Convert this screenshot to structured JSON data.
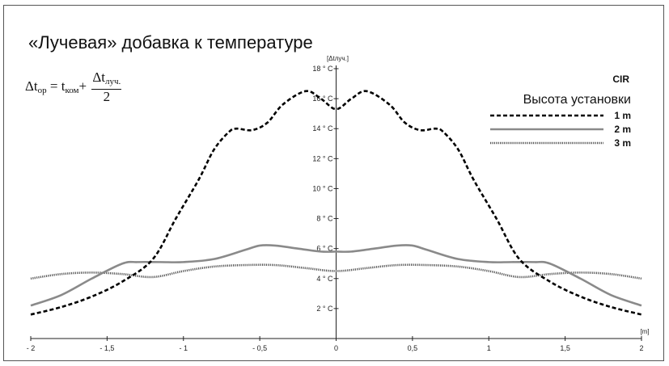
{
  "title": "«Лучевая» добавка к температуре",
  "formula": {
    "lhs": "Δt",
    "lhs_sub": "op",
    "eq": " = t",
    "t_sub": "ком",
    "plus": "+",
    "num": "Δt",
    "num_sub": "луч.",
    "den": "2"
  },
  "code_label": "CIR",
  "legend": {
    "title": "Высота установки",
    "items": [
      {
        "label": "1 m",
        "color": "#000000",
        "style": "dashed"
      },
      {
        "label": "2 m",
        "color": "#8a8a8a",
        "style": "solid"
      },
      {
        "label": "3 m",
        "color": "#555555",
        "style": "dotted"
      }
    ]
  },
  "chart_data": {
    "type": "line",
    "ylabel": "[Δtлуч.]",
    "xunit": "[m]",
    "xlim": [
      -2,
      2
    ],
    "ylim": [
      0,
      18
    ],
    "xticks": [
      {
        "value": -2,
        "label": "- 2"
      },
      {
        "value": -1.5,
        "label": "- 1,5"
      },
      {
        "value": -1,
        "label": "- 1"
      },
      {
        "value": -0.5,
        "label": "- 0,5"
      },
      {
        "value": 0,
        "label": "0"
      },
      {
        "value": 0.5,
        "label": "0,5"
      },
      {
        "value": 1,
        "label": "1"
      },
      {
        "value": 1.5,
        "label": "1,5"
      },
      {
        "value": 2,
        "label": "2"
      }
    ],
    "yticks": [
      {
        "value": 2,
        "label": "2 ° C"
      },
      {
        "value": 4,
        "label": "4 ° C"
      },
      {
        "value": 6,
        "label": "6 ° C"
      },
      {
        "value": 8,
        "label": "8 ° C"
      },
      {
        "value": 10,
        "label": "10 ° C"
      },
      {
        "value": 12,
        "label": "12 ° C"
      },
      {
        "value": 14,
        "label": "14 ° C"
      },
      {
        "value": 16,
        "label": "16 ° C"
      },
      {
        "value": 18,
        "label": "18 ° C"
      }
    ],
    "series": [
      {
        "name": "1 m",
        "x": [
          -2,
          -1.8,
          -1.6,
          -1.4,
          -1.2,
          -1.05,
          -0.9,
          -0.8,
          -0.7,
          -0.65,
          -0.55,
          -0.45,
          -0.35,
          -0.2,
          -0.1,
          0,
          0.1,
          0.2,
          0.35,
          0.45,
          0.55,
          0.65,
          0.7,
          0.8,
          0.9,
          1.05,
          1.2,
          1.4,
          1.6,
          1.8,
          2
        ],
        "y": [
          1.6,
          2.1,
          2.8,
          3.8,
          5.3,
          8.0,
          10.6,
          12.6,
          13.8,
          14.0,
          13.9,
          14.4,
          15.6,
          16.5,
          16.0,
          15.3,
          16.0,
          16.5,
          15.6,
          14.4,
          13.9,
          14.0,
          13.8,
          12.6,
          10.6,
          8.0,
          5.3,
          3.8,
          2.8,
          2.1,
          1.6
        ]
      },
      {
        "name": "2 m",
        "x": [
          -2,
          -1.8,
          -1.6,
          -1.4,
          -1.3,
          -1.15,
          -1.0,
          -0.8,
          -0.6,
          -0.5,
          -0.4,
          -0.25,
          -0.1,
          0,
          0.1,
          0.25,
          0.4,
          0.5,
          0.6,
          0.8,
          1.0,
          1.15,
          1.3,
          1.4,
          1.6,
          1.8,
          2
        ],
        "y": [
          2.2,
          2.9,
          4.0,
          5.0,
          5.1,
          5.1,
          5.1,
          5.3,
          5.9,
          6.2,
          6.2,
          6.0,
          5.8,
          5.8,
          5.8,
          6.0,
          6.2,
          6.2,
          5.9,
          5.3,
          5.1,
          5.1,
          5.1,
          5.0,
          4.0,
          2.9,
          2.2
        ]
      },
      {
        "name": "3 m",
        "x": [
          -2,
          -1.8,
          -1.6,
          -1.4,
          -1.2,
          -1.0,
          -0.8,
          -0.6,
          -0.4,
          -0.2,
          0,
          0.2,
          0.4,
          0.6,
          0.8,
          1.0,
          1.2,
          1.4,
          1.6,
          1.8,
          2
        ],
        "y": [
          4.0,
          4.3,
          4.4,
          4.3,
          4.1,
          4.5,
          4.8,
          4.9,
          4.9,
          4.7,
          4.5,
          4.7,
          4.9,
          4.9,
          4.8,
          4.5,
          4.1,
          4.3,
          4.4,
          4.3,
          4.0
        ]
      }
    ]
  }
}
